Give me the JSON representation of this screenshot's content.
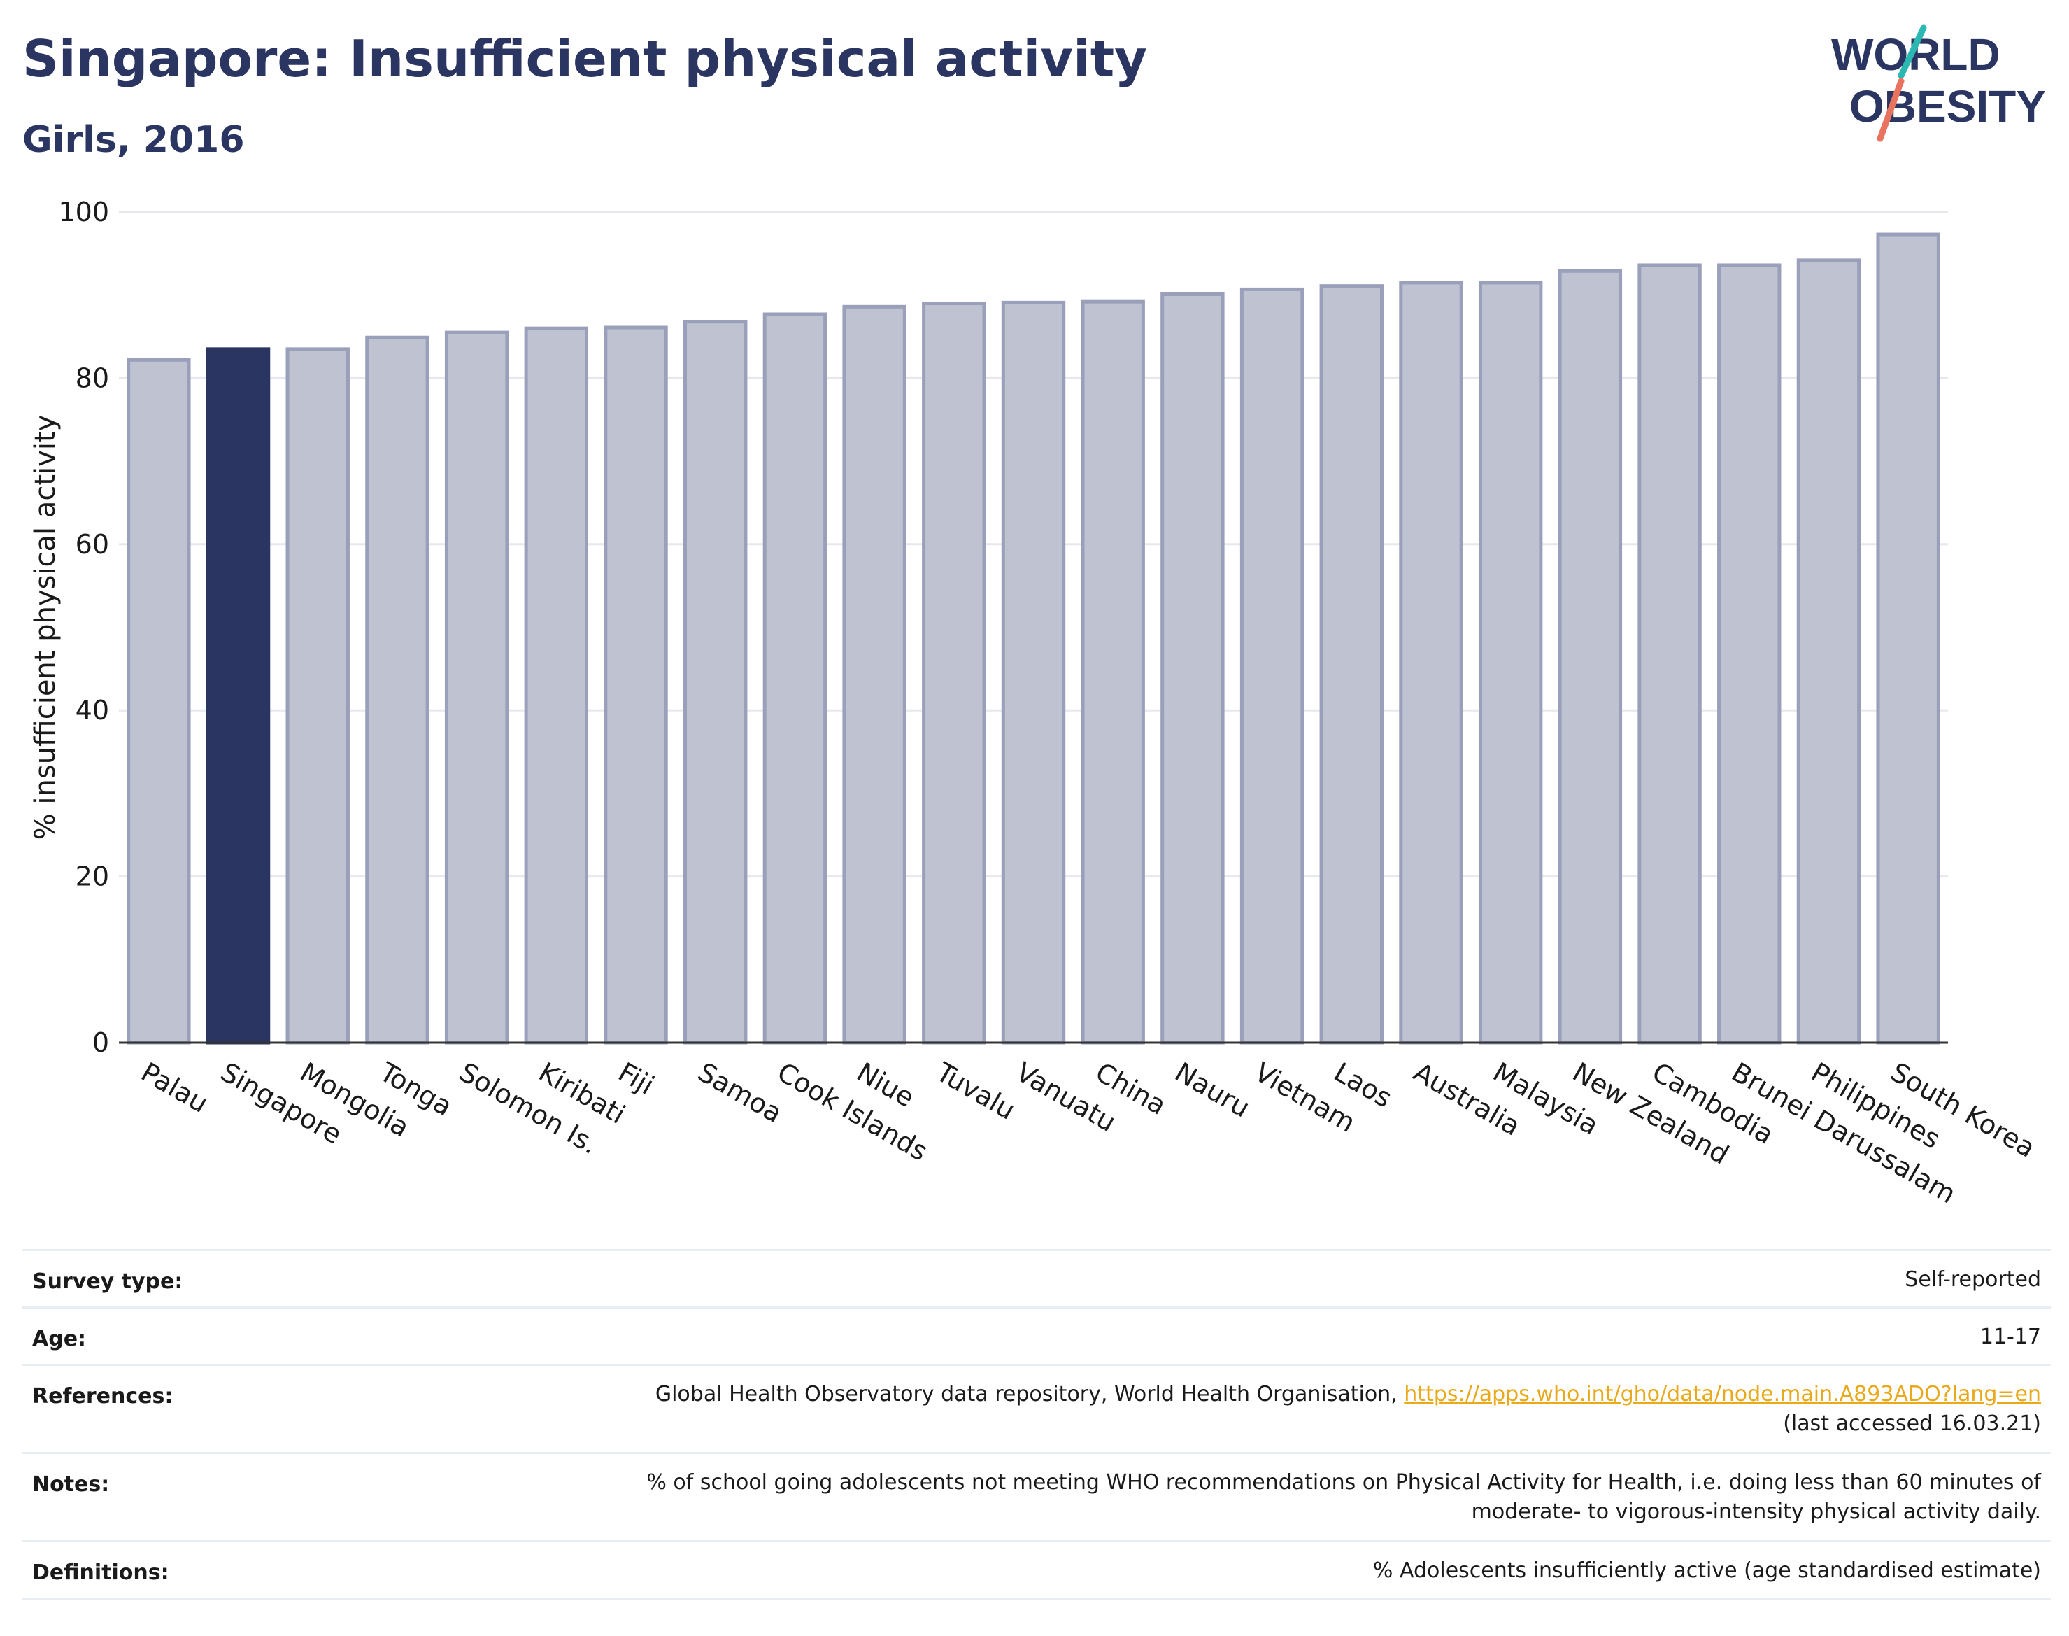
{
  "header": {
    "title": "Singapore: Insufficient physical activity",
    "subtitle": "Girls, 2016",
    "logo_line1": "WORLD",
    "logo_line2": "OBESITY"
  },
  "colors": {
    "highlight": "#2b3561",
    "bar_fill": "#bfc2d1",
    "bar_stroke": "#9aa0ba",
    "title": "#2b3561",
    "link": "#e8a91a",
    "logo_teal": "#2bb8b2",
    "logo_coral": "#e8735f"
  },
  "chart_data": {
    "type": "bar",
    "title": "Singapore: Insufficient physical activity",
    "subtitle": "Girls, 2016",
    "xlabel": "",
    "ylabel": "% insufficient physical activity",
    "ylim": [
      0,
      100
    ],
    "yticks": [
      0,
      20,
      40,
      60,
      80,
      100
    ],
    "grid": true,
    "highlight": "Singapore",
    "categories": [
      "Palau",
      "Singapore",
      "Mongolia",
      "Tonga",
      "Solomon Is.",
      "Kiribati",
      "Fiji",
      "Samoa",
      "Cook Islands",
      "Niue",
      "Tuvalu",
      "Vanuatu",
      "China",
      "Nauru",
      "Vietnam",
      "Laos",
      "Australia",
      "Malaysia",
      "New Zealand",
      "Cambodia",
      "Brunei Darussalam",
      "Philippines",
      "South Korea"
    ],
    "values": [
      82.2,
      83.5,
      83.5,
      84.9,
      85.5,
      86.0,
      86.1,
      86.8,
      87.7,
      88.6,
      89.0,
      89.1,
      89.2,
      90.1,
      90.7,
      91.1,
      91.5,
      91.5,
      92.9,
      93.6,
      93.6,
      94.2,
      97.3
    ]
  },
  "meta": {
    "survey_type_label": "Survey type:",
    "survey_type_value": "Self-reported",
    "age_label": "Age:",
    "age_value": "11-17",
    "references_label": "References:",
    "references_text": "Global Health Observatory data repository, World Health Organisation, ",
    "references_link": "https://apps.who.int/gho/data/node.main.A893ADO?lang=en",
    "references_accessed": "(last accessed 16.03.21)",
    "notes_label": "Notes:",
    "notes_line1": "% of school going adolescents not meeting WHO recommendations on Physical Activity for Health, i.e. doing less than 60 minutes of",
    "notes_line2": "moderate- to vigorous-intensity physical activity daily.",
    "definitions_label": "Definitions:",
    "definitions_value": "% Adolescents insufficiently active (age standardised estimate)"
  }
}
